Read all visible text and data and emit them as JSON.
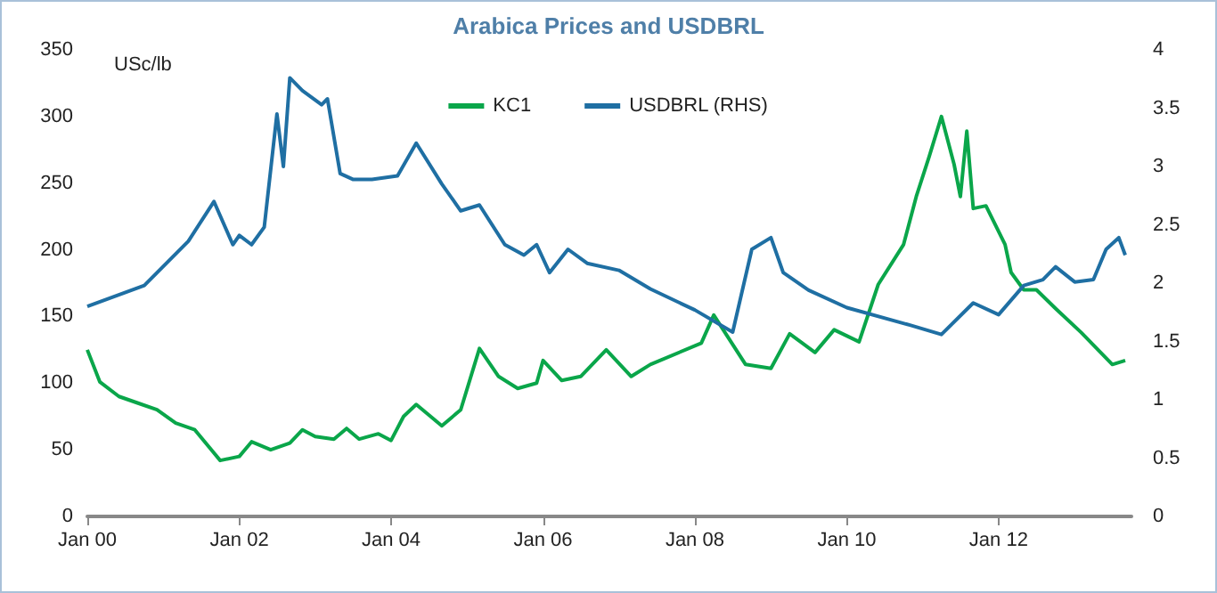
{
  "chart_data": {
    "type": "line",
    "title": "Arabica Prices and USDBRL",
    "ylabel": "USc/lb",
    "xlim": [
      "2000-01",
      "2013-10"
    ],
    "xticks": [
      {
        "value": "2000-01",
        "label": "Jan 00"
      },
      {
        "value": "2002-01",
        "label": "Jan 02"
      },
      {
        "value": "2004-01",
        "label": "Jan 04"
      },
      {
        "value": "2006-01",
        "label": "Jan 06"
      },
      {
        "value": "2008-01",
        "label": "Jan 08"
      },
      {
        "value": "2010-01",
        "label": "Jan 10"
      },
      {
        "value": "2012-01",
        "label": "Jan 12"
      }
    ],
    "ylim": [
      0,
      350
    ],
    "yticks": [
      0,
      50,
      100,
      150,
      200,
      250,
      300,
      350
    ],
    "y2lim": [
      0,
      4
    ],
    "y2ticks": [
      0,
      0.5,
      1,
      1.5,
      2,
      2.5,
      3,
      3.5,
      4
    ],
    "legend": "top",
    "grid": false,
    "marker": "none",
    "line_style": "solid",
    "series": [
      {
        "name": "KC1",
        "color": "#0aa64a",
        "x": [
          "2000-01",
          "2000-03",
          "2000-06",
          "2000-09",
          "2000-12",
          "2001-03",
          "2001-06",
          "2001-10",
          "2002-01",
          "2002-03",
          "2002-06",
          "2002-09",
          "2002-11",
          "2003-01",
          "2003-04",
          "2003-06",
          "2003-08",
          "2003-11",
          "2004-01",
          "2004-03",
          "2004-05",
          "2004-09",
          "2004-12",
          "2005-03",
          "2005-06",
          "2005-09",
          "2005-12",
          "2006-01",
          "2006-04",
          "2006-07",
          "2006-11",
          "2007-03",
          "2007-06",
          "2008-02",
          "2008-04",
          "2008-09",
          "2009-01",
          "2009-04",
          "2009-08",
          "2009-11",
          "2010-03",
          "2010-06",
          "2010-10",
          "2010-12",
          "2011-02",
          "2011-04",
          "2011-06",
          "2011-07",
          "2011-08",
          "2011-09",
          "2011-11",
          "2012-02",
          "2012-03",
          "2012-05",
          "2012-07",
          "2012-10",
          "2013-02",
          "2013-07",
          "2013-09"
        ],
        "values": [
          125,
          101,
          90,
          85,
          80,
          70,
          65,
          42,
          45,
          56,
          50,
          55,
          65,
          60,
          58,
          66,
          58,
          62,
          57,
          75,
          84,
          68,
          80,
          126,
          105,
          96,
          100,
          117,
          102,
          105,
          125,
          105,
          114,
          130,
          151,
          114,
          111,
          137,
          123,
          140,
          131,
          174,
          204,
          240,
          270,
          300,
          264,
          240,
          289,
          231,
          233,
          204,
          183,
          170,
          170,
          156,
          138,
          114,
          117
        ]
      },
      {
        "name": "USDBRL (RHS)",
        "color": "#1f6fa3",
        "axis": "y2",
        "x": [
          "2000-01",
          "2000-10",
          "2001-05",
          "2001-09",
          "2001-12",
          "2002-01",
          "2002-03",
          "2002-05",
          "2002-07",
          "2002-08",
          "2002-09",
          "2002-11",
          "2003-02",
          "2003-03",
          "2003-05",
          "2003-07",
          "2003-10",
          "2004-02",
          "2004-05",
          "2004-09",
          "2004-12",
          "2005-03",
          "2005-07",
          "2005-10",
          "2005-12",
          "2006-02",
          "2006-05",
          "2006-08",
          "2007-01",
          "2007-06",
          "2008-01",
          "2008-07",
          "2008-10",
          "2009-01",
          "2009-03",
          "2009-07",
          "2010-01",
          "2010-11",
          "2011-04",
          "2011-09",
          "2012-01",
          "2012-05",
          "2012-08",
          "2012-10",
          "2013-01",
          "2013-04",
          "2013-06",
          "2013-08",
          "2013-09"
        ],
        "values": [
          1.8,
          1.98,
          2.36,
          2.7,
          2.33,
          2.41,
          2.33,
          2.48,
          3.45,
          3.0,
          3.76,
          3.65,
          3.53,
          3.58,
          2.94,
          2.89,
          2.89,
          2.92,
          3.2,
          2.85,
          2.62,
          2.67,
          2.33,
          2.24,
          2.33,
          2.09,
          2.29,
          2.17,
          2.11,
          1.95,
          1.77,
          1.58,
          2.29,
          2.39,
          2.09,
          1.94,
          1.79,
          1.64,
          1.56,
          1.83,
          1.73,
          1.98,
          2.03,
          2.14,
          2.01,
          2.03,
          2.29,
          2.39,
          2.24
        ]
      }
    ]
  }
}
